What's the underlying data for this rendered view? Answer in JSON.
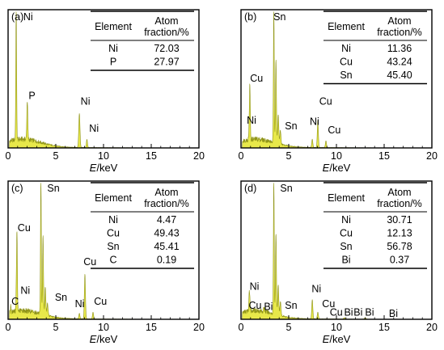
{
  "x_label": "E/keV",
  "table_header": {
    "element": "Element",
    "atom_line1": "Atom",
    "atom_line2": "fraction/%"
  },
  "colors": {
    "fill": "#e8e84a",
    "stroke": "#8f9418",
    "frame": "#000000"
  },
  "chart_data": [
    {
      "type": "area",
      "panel_label": "(a)",
      "xlim": [
        0,
        20
      ],
      "x_ticks": [
        0,
        5,
        10,
        15,
        20
      ],
      "grid": false,
      "table": [
        {
          "element": "Ni",
          "fraction": "72.03"
        },
        {
          "element": "P",
          "fraction": "27.97"
        }
      ],
      "peaks": [
        {
          "label": "Ni",
          "x": 0.85,
          "height": 1.0,
          "width": 0.06
        },
        {
          "label": "P",
          "x": 2.01,
          "height": 0.29,
          "width": 0.07
        },
        {
          "label": "Ni",
          "x": 7.47,
          "height": 0.25,
          "width": 0.09
        },
        {
          "label": "Ni",
          "x": 8.26,
          "height": 0.06,
          "width": 0.08
        }
      ],
      "peak_labels": [
        {
          "text": "Ni",
          "x": 1.6,
          "y": 0.93
        },
        {
          "text": "P",
          "x": 2.15,
          "y": 0.34
        },
        {
          "text": "Ni",
          "x": 7.6,
          "y": 0.3
        },
        {
          "text": "Ni",
          "x": 8.5,
          "y": 0.1
        }
      ]
    },
    {
      "type": "area",
      "panel_label": "(b)",
      "xlim": [
        0,
        20
      ],
      "x_ticks": [
        0,
        5,
        10,
        15,
        20
      ],
      "grid": false,
      "table": [
        {
          "element": "Ni",
          "fraction": "11.36"
        },
        {
          "element": "Cu",
          "fraction": "43.24"
        },
        {
          "element": "Sn",
          "fraction": "45.40"
        }
      ],
      "peaks": [
        {
          "label": "Ni",
          "x": 0.85,
          "height": 0.09,
          "width": 0.06
        },
        {
          "label": "Cu",
          "x": 0.93,
          "height": 0.4,
          "width": 0.06
        },
        {
          "label": "Sn",
          "x": 3.44,
          "height": 1.0,
          "width": 0.06
        },
        {
          "label": "Sn",
          "x": 3.66,
          "height": 0.62,
          "width": 0.07
        },
        {
          "label": "Sn",
          "x": 3.9,
          "height": 0.22,
          "width": 0.08
        },
        {
          "label": "Sn",
          "x": 4.13,
          "height": 0.1,
          "width": 0.08
        },
        {
          "label": "Ni",
          "x": 7.47,
          "height": 0.06,
          "width": 0.08
        },
        {
          "label": "Cu",
          "x": 8.05,
          "height": 0.2,
          "width": 0.08
        },
        {
          "label": "Cu",
          "x": 8.9,
          "height": 0.05,
          "width": 0.08
        }
      ],
      "peak_labels": [
        {
          "text": "Cu",
          "x": 0.95,
          "y": 0.47
        },
        {
          "text": "Ni",
          "x": 0.6,
          "y": 0.16
        },
        {
          "text": "Sn",
          "x": 3.4,
          "y": 1.0
        },
        {
          "text": "Sn",
          "x": 4.6,
          "y": 0.12
        },
        {
          "text": "Ni",
          "x": 7.2,
          "y": 0.15
        },
        {
          "text": "Cu",
          "x": 8.2,
          "y": 0.3
        },
        {
          "text": "Cu",
          "x": 9.1,
          "y": 0.09
        }
      ]
    },
    {
      "type": "area",
      "panel_label": "(c)",
      "xlim": [
        0,
        20
      ],
      "x_ticks": [
        0,
        5,
        10,
        15,
        20
      ],
      "grid": false,
      "table": [
        {
          "element": "Ni",
          "fraction": "4.47"
        },
        {
          "element": "Cu",
          "fraction": "49.43"
        },
        {
          "element": "Sn",
          "fraction": "45.41"
        },
        {
          "element": "C",
          "fraction": "0.19"
        }
      ],
      "peaks": [
        {
          "label": "C",
          "x": 0.28,
          "height": 0.05,
          "width": 0.05
        },
        {
          "label": "Cu",
          "x": 0.93,
          "height": 0.59,
          "width": 0.06
        },
        {
          "label": "Ni",
          "x": 0.85,
          "height": 0.12,
          "width": 0.05
        },
        {
          "label": "Sn",
          "x": 3.44,
          "height": 1.0,
          "width": 0.06
        },
        {
          "label": "Sn",
          "x": 3.66,
          "height": 0.58,
          "width": 0.07
        },
        {
          "label": "Sn",
          "x": 3.9,
          "height": 0.2,
          "width": 0.08
        },
        {
          "label": "Sn",
          "x": 4.13,
          "height": 0.09,
          "width": 0.08
        },
        {
          "label": "Ni",
          "x": 7.47,
          "height": 0.04,
          "width": 0.08
        },
        {
          "label": "Cu",
          "x": 8.05,
          "height": 0.33,
          "width": 0.08
        },
        {
          "label": "Cu",
          "x": 8.9,
          "height": 0.05,
          "width": 0.08
        }
      ],
      "peak_labels": [
        {
          "text": "Cu",
          "x": 1.0,
          "y": 0.63
        },
        {
          "text": "Ni",
          "x": 1.3,
          "y": 0.17
        },
        {
          "text": "C",
          "x": 0.35,
          "y": 0.09
        },
        {
          "text": "Sn",
          "x": 4.1,
          "y": 1.0
        },
        {
          "text": "Sn",
          "x": 4.9,
          "y": 0.12
        },
        {
          "text": "Ni",
          "x": 7.0,
          "y": 0.07
        },
        {
          "text": "Cu",
          "x": 7.9,
          "y": 0.38
        },
        {
          "text": "Cu",
          "x": 9.0,
          "y": 0.09
        }
      ]
    },
    {
      "type": "area",
      "panel_label": "(d)",
      "xlim": [
        0,
        20
      ],
      "x_ticks": [
        0,
        5,
        10,
        15,
        20
      ],
      "grid": false,
      "table": [
        {
          "element": "Ni",
          "fraction": "30.71"
        },
        {
          "element": "Cu",
          "fraction": "12.13"
        },
        {
          "element": "Sn",
          "fraction": "56.78"
        },
        {
          "element": "Bi",
          "fraction": "0.37"
        }
      ],
      "peaks": [
        {
          "label": "Cu",
          "x": 0.93,
          "height": 0.09,
          "width": 0.06
        },
        {
          "label": "Ni",
          "x": 0.85,
          "height": 0.12,
          "width": 0.05
        },
        {
          "label": "Bi",
          "x": 2.42,
          "height": 0.03,
          "width": 0.07
        },
        {
          "label": "Sn",
          "x": 3.44,
          "height": 1.0,
          "width": 0.06
        },
        {
          "label": "Sn",
          "x": 3.66,
          "height": 0.6,
          "width": 0.07
        },
        {
          "label": "Sn",
          "x": 3.9,
          "height": 0.22,
          "width": 0.08
        },
        {
          "label": "Sn",
          "x": 4.13,
          "height": 0.1,
          "width": 0.08
        },
        {
          "label": "Ni",
          "x": 7.47,
          "height": 0.14,
          "width": 0.08
        },
        {
          "label": "Cu",
          "x": 8.05,
          "height": 0.05,
          "width": 0.08
        },
        {
          "label": "Bi",
          "x": 10.84,
          "height": 0.01,
          "width": 0.1
        },
        {
          "label": "Bi",
          "x": 13.02,
          "height": 0.01,
          "width": 0.1
        }
      ],
      "peak_labels": [
        {
          "text": "Ni",
          "x": 0.9,
          "y": 0.2
        },
        {
          "text": "Cu",
          "x": 0.8,
          "y": 0.06
        },
        {
          "text": "Bi",
          "x": 2.4,
          "y": 0.05
        },
        {
          "text": "Sn",
          "x": 4.1,
          "y": 1.0
        },
        {
          "text": "Sn",
          "x": 4.6,
          "y": 0.06
        },
        {
          "text": "Ni",
          "x": 7.4,
          "y": 0.18
        },
        {
          "text": "Cu",
          "x": 8.5,
          "y": 0.07
        },
        {
          "text": "Cu",
          "x": 9.3,
          "y": 0.01
        },
        {
          "text": "Bi",
          "x": 10.8,
          "y": 0.01
        },
        {
          "text": "Bi",
          "x": 11.8,
          "y": 0.01
        },
        {
          "text": "Bi",
          "x": 13.0,
          "y": 0.01
        },
        {
          "text": "Bi",
          "x": 15.5,
          "y": 0.0
        }
      ]
    }
  ]
}
